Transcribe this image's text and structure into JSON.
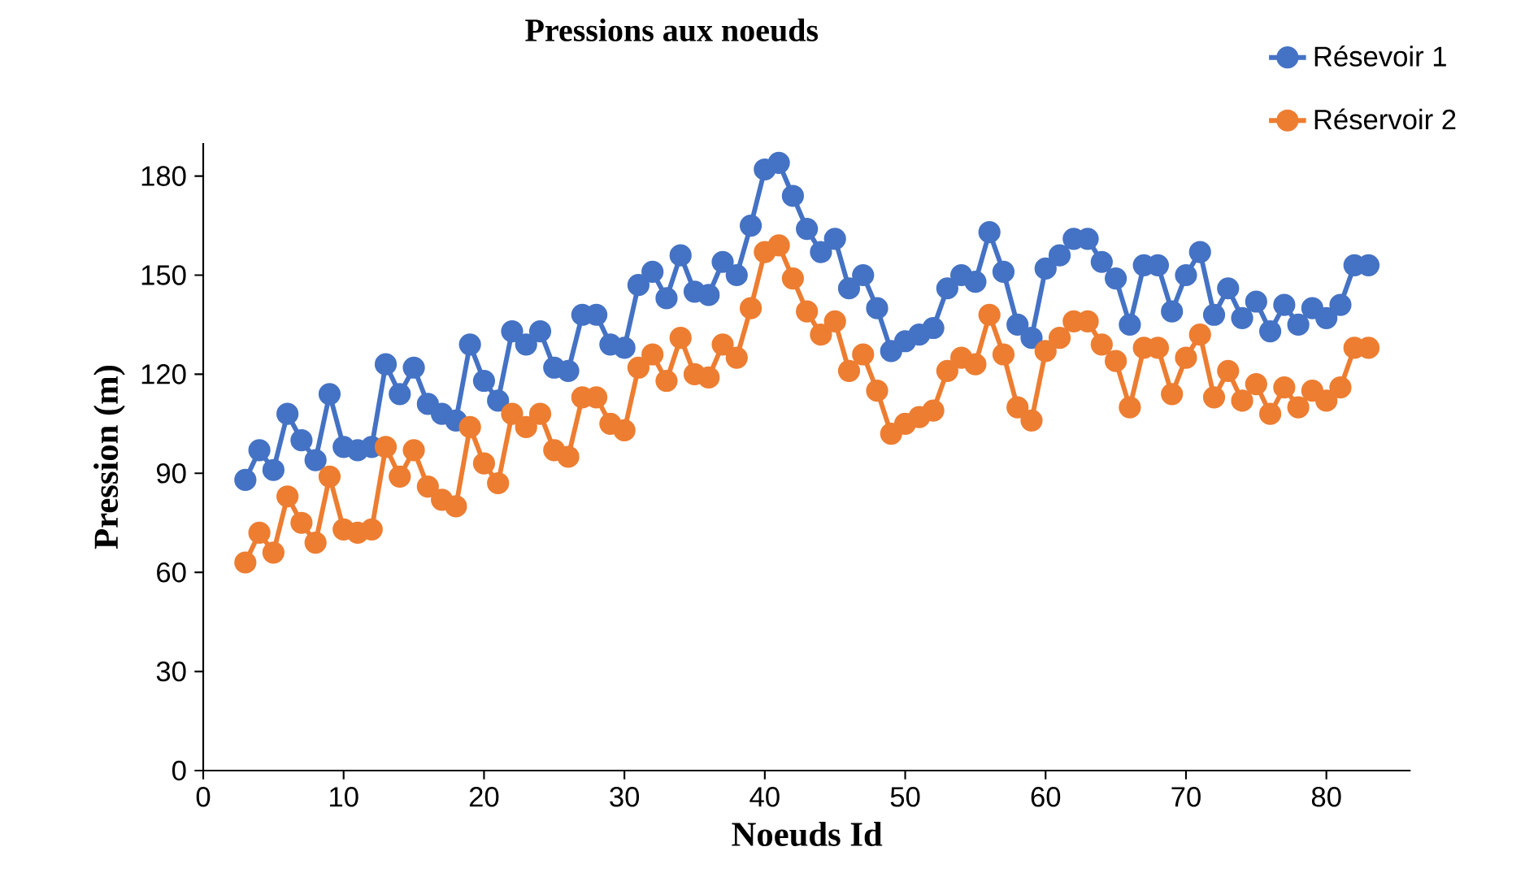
{
  "chart_data": {
    "type": "line",
    "title": "Pressions aux noeuds",
    "xlabel": "Noeuds Id",
    "ylabel": "Pression (m)",
    "x": [
      3,
      4,
      5,
      6,
      7,
      8,
      9,
      10,
      11,
      12,
      13,
      14,
      15,
      16,
      17,
      18,
      19,
      20,
      21,
      22,
      23,
      24,
      25,
      26,
      27,
      28,
      29,
      30,
      31,
      32,
      33,
      34,
      35,
      36,
      37,
      38,
      39,
      40,
      41,
      42,
      43,
      44,
      45,
      46,
      47,
      48,
      49,
      50,
      51,
      52,
      53,
      54,
      55,
      56,
      57,
      58,
      59,
      60,
      61,
      62,
      63,
      64,
      65,
      66,
      67,
      68,
      69,
      70,
      71,
      72,
      73,
      74,
      75,
      76,
      77,
      78,
      79,
      80,
      81,
      82,
      83
    ],
    "series": [
      {
        "name": "Résevoir 1",
        "color": "#4472c4",
        "values": [
          88,
          97,
          91,
          108,
          100,
          94,
          114,
          98,
          97,
          98,
          123,
          114,
          122,
          111,
          108,
          106,
          129,
          118,
          112,
          133,
          129,
          133,
          122,
          121,
          138,
          138,
          129,
          128,
          147,
          151,
          143,
          156,
          145,
          144,
          154,
          150,
          165,
          182,
          184,
          174,
          164,
          157,
          161,
          146,
          150,
          140,
          127,
          130,
          132,
          134,
          146,
          150,
          148,
          163,
          151,
          135,
          131,
          152,
          156,
          161,
          161,
          154,
          149,
          135,
          153,
          153,
          139,
          150,
          157,
          138,
          146,
          137,
          142,
          133,
          141,
          135,
          140,
          137,
          141,
          153,
          153
        ]
      },
      {
        "name": "Réservoir 2",
        "color": "#ed7d31",
        "values": [
          63,
          72,
          66,
          83,
          75,
          69,
          89,
          73,
          72,
          73,
          98,
          89,
          97,
          86,
          82,
          80,
          104,
          93,
          87,
          108,
          104,
          108,
          97,
          95,
          113,
          113,
          105,
          103,
          122,
          126,
          118,
          131,
          120,
          119,
          129,
          125,
          140,
          157,
          159,
          149,
          139,
          132,
          136,
          121,
          126,
          115,
          102,
          105,
          107,
          109,
          121,
          125,
          123,
          138,
          126,
          110,
          106,
          127,
          131,
          136,
          136,
          129,
          124,
          110,
          128,
          128,
          114,
          125,
          132,
          113,
          121,
          112,
          117,
          108,
          116,
          110,
          115,
          112,
          116,
          128,
          128
        ]
      }
    ],
    "xlim": [
      0,
      86
    ],
    "ylim": [
      0,
      190
    ],
    "xticks": [
      0,
      10,
      20,
      30,
      40,
      50,
      60,
      70,
      80
    ],
    "yticks": [
      0,
      30,
      60,
      90,
      120,
      150,
      180
    ],
    "legend": "top right",
    "marker": "circle",
    "line_style": "solid"
  }
}
